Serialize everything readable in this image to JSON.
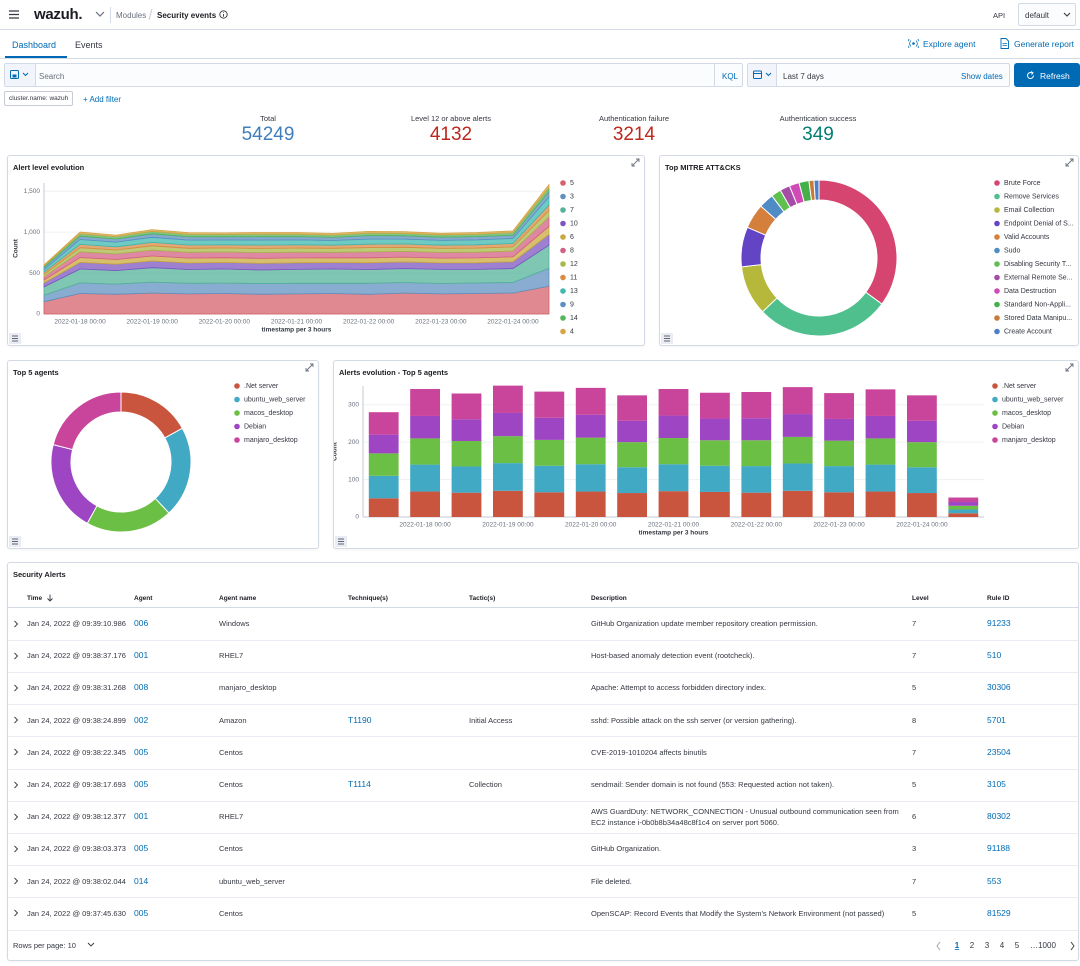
{
  "header": {
    "logo": "wazuh.",
    "breadcrumb": [
      "Modules",
      "Security events"
    ],
    "api": "API",
    "api_select": "default"
  },
  "tabs": [
    "Dashboard",
    "Events"
  ],
  "actions": [
    "Explore agent",
    "Generate report"
  ],
  "search": {
    "placeholder": "Search",
    "language": "KQL",
    "time": "Last 7 days",
    "show_dates": "Show dates",
    "refresh": "Refresh"
  },
  "filters": {
    "pill": "cluster.name: wazuh",
    "add": "+ Add filter"
  },
  "stats": [
    {
      "label": "Total",
      "value": 54249,
      "color": "#3f7fbf"
    },
    {
      "label": "Level 12 or above alerts",
      "value": 4132,
      "color": "#bd271e"
    },
    {
      "label": "Authentication failure",
      "value": 3214,
      "color": "#bd271e"
    },
    {
      "label": "Authentication success",
      "value": 349,
      "color": "#017d73"
    }
  ],
  "charts": [
    {
      "type": "area",
      "title": "Alert level evolution",
      "ylabel": "Count",
      "xlabel": "timestamp per 3 hours",
      "categories": [
        null,
        "2022-01-18 00:00",
        null,
        "2022-01-19 00:00",
        null,
        "2022-01-20 00:00",
        null,
        "2022-01-21 00:00",
        null,
        "2022-01-22 00:00",
        null,
        "2022-01-23 00:00",
        null,
        "2022-01-24 00:00",
        null
      ],
      "ylim": [
        0,
        1600
      ],
      "yticks": [
        0,
        500,
        {
          "value": 1000,
          "label": "1,000"
        },
        {
          "value": 1500,
          "label": "1,500"
        }
      ],
      "grid": true,
      "series": [
        {
          "name": "5",
          "color": "#d6616b",
          "values": [
            150,
            250,
            240,
            255,
            245,
            250,
            240,
            245,
            250,
            240,
            255,
            245,
            250,
            255,
            340
          ]
        },
        {
          "name": "3",
          "color": "#6092c0",
          "values": [
            80,
            130,
            125,
            135,
            130,
            128,
            132,
            130,
            125,
            135,
            130,
            128,
            130,
            130,
            220
          ]
        },
        {
          "name": "7",
          "color": "#54b399",
          "values": [
            100,
            170,
            165,
            175,
            168,
            172,
            165,
            170,
            175,
            168,
            170,
            172,
            165,
            170,
            280
          ]
        },
        {
          "name": "10",
          "color": "#7e55c2",
          "values": [
            50,
            80,
            78,
            82,
            80,
            79,
            81,
            80,
            78,
            82,
            80,
            79,
            80,
            82,
            130
          ]
        },
        {
          "name": "6",
          "color": "#c9a93e",
          "values": [
            35,
            60,
            58,
            62,
            60,
            59,
            61,
            60,
            58,
            62,
            60,
            59,
            60,
            61,
            100
          ]
        },
        {
          "name": "8",
          "color": "#d36086",
          "values": [
            40,
            70,
            68,
            72,
            70,
            69,
            71,
            70,
            68,
            72,
            70,
            69,
            70,
            71,
            115
          ]
        },
        {
          "name": "12",
          "color": "#a9b84a",
          "values": [
            30,
            50,
            48,
            52,
            50,
            49,
            51,
            50,
            48,
            52,
            50,
            49,
            50,
            51,
            80
          ]
        },
        {
          "name": "11",
          "color": "#da8b45",
          "values": [
            25,
            40,
            38,
            42,
            40,
            39,
            41,
            40,
            38,
            42,
            40,
            39,
            40,
            41,
            65
          ]
        },
        {
          "name": "13",
          "color": "#3fb8b0",
          "values": [
            35,
            60,
            58,
            62,
            60,
            59,
            61,
            60,
            58,
            62,
            60,
            59,
            60,
            61,
            100
          ]
        },
        {
          "name": "9",
          "color": "#5b8fbf",
          "values": [
            25,
            40,
            38,
            42,
            40,
            39,
            41,
            40,
            38,
            42,
            40,
            39,
            40,
            41,
            65
          ]
        },
        {
          "name": "14",
          "color": "#56b45a",
          "values": [
            20,
            30,
            29,
            31,
            30,
            29,
            31,
            30,
            29,
            31,
            30,
            29,
            30,
            31,
            50
          ]
        },
        {
          "name": "4",
          "color": "#d6a545",
          "values": [
            10,
            20,
            19,
            21,
            20,
            19,
            21,
            20,
            19,
            21,
            20,
            19,
            20,
            21,
            35
          ]
        }
      ]
    },
    {
      "type": "donut",
      "title": "Top MITRE ATT&CKS",
      "categories": [
        "Brute Force",
        "Remove Services",
        "Email Collection",
        "Endpoint Denial of S...",
        "Valid Accounts",
        "Sudo",
        "Disabling Security T...",
        "External Remote Se...",
        "Data Destruction",
        "Standard Non-Appli...",
        "Stored Data Manipu...",
        "Create Account"
      ],
      "values": [
        34,
        27,
        10,
        8,
        5,
        3,
        2,
        2,
        2,
        2,
        1,
        1
      ],
      "colors": [
        "#d6456f",
        "#4fc08d",
        "#b5b83a",
        "#6244c4",
        "#d47f3c",
        "#4f8bc4",
        "#5fbf4f",
        "#a64ca6",
        "#d04ab8",
        "#45b04a",
        "#c57b3a",
        "#4c7fc9"
      ]
    },
    {
      "type": "donut",
      "title": "Top 5 agents",
      "categories": [
        ".Net server",
        "ubuntu_web_server",
        "macos_desktop",
        "Debian",
        "manjaro_desktop"
      ],
      "values": [
        17,
        21,
        20,
        21,
        21
      ],
      "colors": [
        "#c9553f",
        "#41a9c4",
        "#6cbf45",
        "#9e45c4",
        "#c9449b"
      ]
    },
    {
      "type": "bar",
      "title": "Alerts evolution - Top 5 agents",
      "ylabel": "Count",
      "xlabel": "timestamp per 3 hours",
      "categories": [
        null,
        "2022-01-18 00:00",
        null,
        "2022-01-19 00:00",
        null,
        "2022-01-20 00:00",
        null,
        "2022-01-21 00:00",
        null,
        "2022-01-22 00:00",
        null,
        "2022-01-23 00:00",
        null,
        "2022-01-24 00:00",
        null
      ],
      "ylim": [
        0,
        350
      ],
      "yticks": [
        0,
        100,
        200,
        300
      ],
      "grid": true,
      "series": [
        {
          "name": ".Net server",
          "color": "#c9553f",
          "values": [
            50,
            68,
            65,
            70,
            66,
            68,
            64,
            69,
            67,
            65,
            70,
            66,
            68,
            64,
            10
          ]
        },
        {
          "name": "ubuntu_web_server",
          "color": "#41a9c4",
          "values": [
            60,
            72,
            70,
            74,
            71,
            73,
            69,
            72,
            70,
            71,
            73,
            70,
            72,
            69,
            10
          ]
        },
        {
          "name": "macos_desktop",
          "color": "#6cbf45",
          "values": [
            60,
            70,
            68,
            72,
            69,
            71,
            67,
            70,
            68,
            69,
            71,
            68,
            70,
            67,
            10
          ]
        },
        {
          "name": "Debian",
          "color": "#9e45c4",
          "values": [
            50,
            60,
            58,
            62,
            59,
            61,
            57,
            60,
            58,
            59,
            61,
            58,
            60,
            57,
            10
          ]
        },
        {
          "name": "manjaro_desktop",
          "color": "#c9449b",
          "values": [
            60,
            72,
            69,
            73,
            70,
            72,
            68,
            71,
            69,
            70,
            72,
            69,
            71,
            68,
            12
          ]
        }
      ]
    }
  ],
  "table": {
    "title": "Security Alerts",
    "columns": [
      "Time",
      "Agent",
      "Agent name",
      "Technique(s)",
      "Tactic(s)",
      "Description",
      "Level",
      "Rule ID"
    ],
    "rows": [
      [
        "Jan 24, 2022 @ 09:39:10.986",
        "006",
        "Windows",
        null,
        null,
        "GitHub Organization update member repository creation permission.",
        "7",
        "91233"
      ],
      [
        "Jan 24, 2022 @ 09:38:37.176",
        "001",
        "RHEL7",
        null,
        null,
        "Host-based anomaly detection event (rootcheck).",
        "7",
        "510"
      ],
      [
        "Jan 24, 2022 @ 09:38:31.268",
        "008",
        "manjaro_desktop",
        null,
        null,
        "Apache: Attempt to access forbidden directory index.",
        "5",
        "30306"
      ],
      [
        "Jan 24, 2022 @ 09:38:24.899",
        "002",
        "Amazon",
        "T1190",
        "Initial Access",
        "sshd: Possible attack on the ssh server (or version gathering).",
        "8",
        "5701"
      ],
      [
        "Jan 24, 2022 @ 09:38:22.345",
        "005",
        "Centos",
        null,
        null,
        "CVE-2019-1010204 affects binutils",
        "7",
        "23504"
      ],
      [
        "Jan 24, 2022 @ 09:38:17.693",
        "005",
        "Centos",
        "T1114",
        "Collection",
        "sendmail: Sender domain is not found (553: Requested action not taken).",
        "5",
        "3105"
      ],
      [
        "Jan 24, 2022 @ 09:38:12.377",
        "001",
        "RHEL7",
        null,
        null,
        "AWS GuardDuty: NETWORK_CONNECTION - Unusual outbound communication seen from EC2 instance i-0b0b8b34a48c8f1c4 on server port 5060.",
        "6",
        "80302"
      ],
      [
        "Jan 24, 2022 @ 09:38:03.373",
        "005",
        "Centos",
        null,
        null,
        "GitHub Organization.",
        "3",
        "91188"
      ],
      [
        "Jan 24, 2022 @ 09:38:02.044",
        "014",
        "ubuntu_web_server",
        null,
        null,
        "File deleted.",
        "7",
        "553"
      ],
      [
        "Jan 24, 2022 @ 09:37:45.630",
        "005",
        "Centos",
        null,
        null,
        "OpenSCAP: Record Events that Modify the System's Network Environment (not passed)",
        "5",
        "81529"
      ]
    ]
  },
  "pagination": {
    "rows_per_page": "Rows per page: 10",
    "pages": [
      "1",
      "2",
      "3",
      "4",
      "5",
      "…",
      "1000"
    ]
  }
}
